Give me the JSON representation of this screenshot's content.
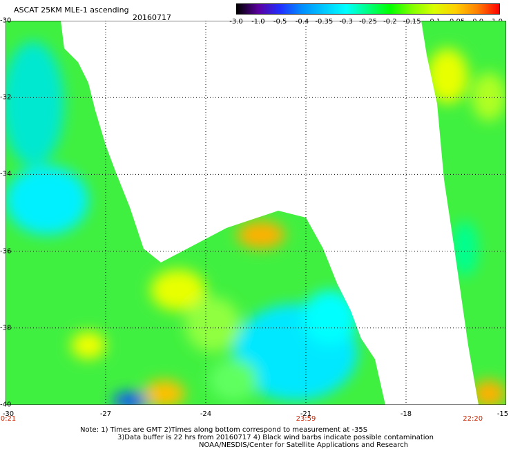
{
  "header": {
    "title": "ASCAT 25KM MLE-1 ascending",
    "date": "20160717"
  },
  "colorbar": {
    "ticks": [
      "-3.0",
      "-1.0",
      "-0.5",
      "-0.4",
      "-0.35",
      "-0.3",
      "-0.25",
      "-0.2",
      "-0.15",
      "-0.1",
      "-0.05",
      "0.0",
      "1.0"
    ],
    "colors": [
      "#000000",
      "#5a00a0",
      "#2030ff",
      "#0090ff",
      "#00c8ff",
      "#00ffff",
      "#00ff80",
      "#00ff00",
      "#80ff00",
      "#d8ff00",
      "#ffd000",
      "#ff8000",
      "#ff0000"
    ]
  },
  "map": {
    "lat_labels": [
      "-30",
      "-32",
      "-34",
      "-36",
      "-38",
      "-40"
    ],
    "lat_values": [
      -30,
      -32,
      -34,
      -36,
      -38,
      -40
    ],
    "lon_labels": [
      "-30",
      "-27",
      "-24",
      "-21",
      "-18",
      "-15"
    ],
    "lon_values": [
      -30,
      -27,
      -24,
      -21,
      -18,
      -15
    ],
    "time_labels": [
      {
        "text": "0:21",
        "lon": -30
      },
      {
        "text": "23:59",
        "lon": -21
      },
      {
        "text": "22:20",
        "lon": -16
      }
    ],
    "extent": {
      "lon": [
        -30,
        -15
      ],
      "lat": [
        -40,
        -30
      ]
    }
  },
  "notes": {
    "line1": "Note: 1) Times are GMT 2)Times along bottom correspond to measurement at -35S",
    "line2": "3)Data buffer is 22 hrs from 20160717 4) Black wind barbs indicate possible contamination",
    "line3": "NOAA/NESDIS/Center for Satellite Applications and Research"
  }
}
